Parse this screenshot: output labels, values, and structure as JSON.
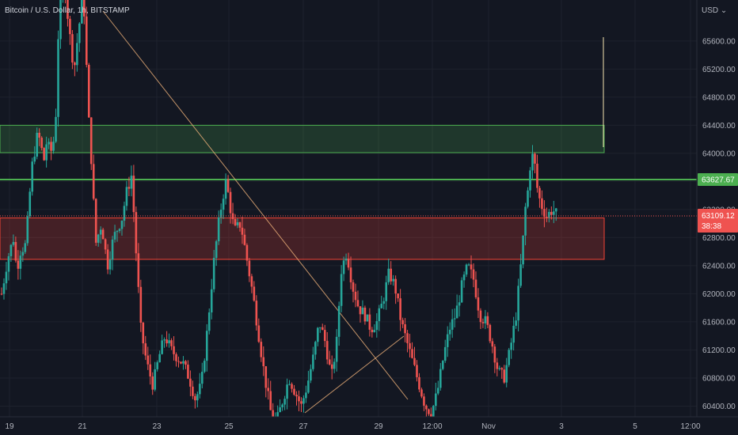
{
  "chart_data": {
    "type": "candlestick",
    "symbol": "Bitcoin / U.S. Dollar",
    "timeframe": "1h",
    "exchange": "BITSTAMP",
    "currency_label": "USD",
    "y_axis": {
      "range": [
        60200,
        66100
      ],
      "ticks": [
        60400,
        60800,
        61200,
        61600,
        62000,
        62400,
        62800,
        63200,
        63600,
        64000,
        64400,
        64800,
        65200,
        65600
      ],
      "tick_labels": [
        "60400.00",
        "60800.00",
        "61200.00",
        "61600.00",
        "62000.00",
        "62400.00",
        "62800.00",
        "63200.00",
        "63600.00",
        "64000.00",
        "64400.00",
        "64800.00",
        "65200.00",
        "65600.00"
      ]
    },
    "x_axis": {
      "tick_labels": [
        "19",
        "21",
        "23",
        "25",
        "27",
        "29",
        "12:00",
        "Nov",
        "3",
        "5",
        "12:00"
      ]
    },
    "current_price": {
      "value": 63109.12,
      "label": "63109.12",
      "countdown": "38:38"
    },
    "horizontal_line": {
      "value": 63627.67,
      "label": "63627.67",
      "color": "#4caf50"
    },
    "zones": [
      {
        "name": "supply-zone",
        "y_top": 64400,
        "y_bottom": 64010,
        "color": "#4caf50"
      },
      {
        "name": "demand-zone",
        "y_top": 63080,
        "y_bottom": 62490,
        "color": "#f44336"
      }
    ],
    "colors": {
      "up": "#26a69a",
      "down": "#ef5350",
      "background": "#131722",
      "trendline": "#f0b27a"
    },
    "price_path": [
      [
        0,
        62000
      ],
      [
        4,
        62500
      ],
      [
        8,
        62800
      ],
      [
        10,
        62300
      ],
      [
        12,
        62600
      ],
      [
        16,
        62700
      ],
      [
        20,
        63800
      ],
      [
        24,
        64300
      ],
      [
        26,
        64100
      ],
      [
        28,
        63900
      ],
      [
        30,
        64200
      ],
      [
        32,
        64000
      ],
      [
        34,
        64100
      ],
      [
        36,
        64600
      ],
      [
        38,
        66100
      ],
      [
        42,
        66300
      ],
      [
        46,
        65500
      ],
      [
        48,
        65200
      ],
      [
        50,
        65600
      ],
      [
        54,
        66300
      ],
      [
        58,
        64300
      ],
      [
        60,
        63700
      ],
      [
        62,
        62700
      ],
      [
        66,
        63000
      ],
      [
        70,
        62400
      ],
      [
        74,
        62800
      ],
      [
        78,
        63000
      ],
      [
        80,
        63100
      ],
      [
        82,
        63400
      ],
      [
        86,
        63700
      ],
      [
        88,
        62900
      ],
      [
        90,
        62200
      ],
      [
        92,
        61500
      ],
      [
        96,
        61000
      ],
      [
        100,
        60700
      ],
      [
        104,
        61100
      ],
      [
        108,
        61400
      ],
      [
        112,
        61200
      ],
      [
        116,
        61100
      ],
      [
        120,
        61000
      ],
      [
        124,
        60800
      ],
      [
        128,
        60500
      ],
      [
        132,
        60700
      ],
      [
        136,
        61500
      ],
      [
        140,
        62400
      ],
      [
        144,
        63100
      ],
      [
        148,
        63600
      ],
      [
        150,
        63400
      ],
      [
        152,
        63100
      ],
      [
        154,
        62900
      ],
      [
        158,
        63000
      ],
      [
        162,
        62500
      ],
      [
        166,
        62000
      ],
      [
        170,
        61400
      ],
      [
        174,
        60800
      ],
      [
        178,
        60300
      ],
      [
        182,
        60200
      ],
      [
        186,
        60500
      ],
      [
        190,
        60800
      ],
      [
        194,
        60600
      ],
      [
        198,
        60400
      ],
      [
        202,
        60700
      ],
      [
        206,
        61100
      ],
      [
        210,
        61600
      ],
      [
        214,
        61300
      ],
      [
        218,
        60800
      ],
      [
        222,
        61400
      ],
      [
        224,
        62300
      ],
      [
        228,
        62600
      ],
      [
        232,
        62100
      ],
      [
        236,
        61800
      ],
      [
        240,
        61700
      ],
      [
        244,
        61500
      ],
      [
        248,
        61600
      ],
      [
        252,
        61900
      ],
      [
        256,
        62300
      ],
      [
        260,
        62100
      ],
      [
        264,
        61600
      ],
      [
        268,
        61300
      ],
      [
        272,
        61000
      ],
      [
        276,
        60700
      ],
      [
        280,
        60400
      ],
      [
        284,
        60300
      ],
      [
        288,
        60600
      ],
      [
        292,
        61100
      ],
      [
        296,
        61500
      ],
      [
        300,
        61700
      ],
      [
        304,
        62100
      ],
      [
        308,
        62400
      ],
      [
        312,
        62200
      ],
      [
        316,
        61700
      ],
      [
        320,
        61600
      ],
      [
        324,
        61300
      ],
      [
        328,
        60900
      ],
      [
        332,
        60800
      ],
      [
        336,
        61200
      ],
      [
        340,
        61700
      ],
      [
        344,
        62600
      ],
      [
        346,
        63200
      ],
      [
        348,
        63500
      ],
      [
        350,
        64000
      ],
      [
        352,
        63900
      ],
      [
        354,
        63500
      ],
      [
        356,
        63300
      ],
      [
        358,
        63200
      ],
      [
        360,
        63100
      ],
      [
        364,
        63200
      ],
      [
        368,
        63100
      ]
    ]
  }
}
